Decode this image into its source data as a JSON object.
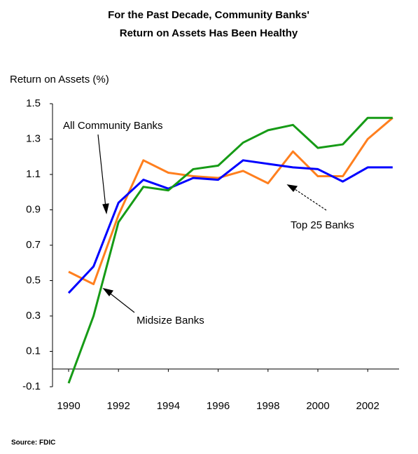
{
  "chart_data": {
    "type": "line",
    "title": [
      "For the Past Decade, Community Banks'",
      "Return on Assets Has Been Healthy"
    ],
    "y_label": "Return on Assets (%)",
    "source": "Source: FDIC",
    "x": [
      1990,
      1991,
      1992,
      1993,
      1994,
      1995,
      1996,
      1997,
      1998,
      1999,
      2000,
      2001,
      2002,
      2003
    ],
    "xlim": [
      1990,
      2003
    ],
    "xticks": [
      1990,
      1992,
      1994,
      1996,
      1998,
      2000,
      2002
    ],
    "ylim": [
      -0.1,
      1.5
    ],
    "yticks": [
      1.5,
      1.3,
      1.1,
      0.9,
      0.7,
      0.5,
      0.3,
      0.1,
      -0.1
    ],
    "series": [
      {
        "name": "All Community Banks",
        "color": "#0000ff",
        "values": [
          0.43,
          0.58,
          0.94,
          1.07,
          1.02,
          1.08,
          1.07,
          1.18,
          1.16,
          1.14,
          1.13,
          1.06,
          1.14,
          1.14
        ]
      },
      {
        "name": "Top 25 Banks",
        "color": "#ff7f1e",
        "values": [
          0.55,
          0.48,
          0.87,
          1.18,
          1.11,
          1.09,
          1.08,
          1.12,
          1.05,
          1.23,
          1.09,
          1.09,
          1.3,
          1.42
        ]
      },
      {
        "name": "Midsize Banks",
        "color": "#169b16",
        "values": [
          -0.08,
          0.3,
          0.83,
          1.03,
          1.01,
          1.13,
          1.15,
          1.28,
          1.35,
          1.38,
          1.25,
          1.27,
          1.42,
          1.42
        ]
      }
    ]
  }
}
